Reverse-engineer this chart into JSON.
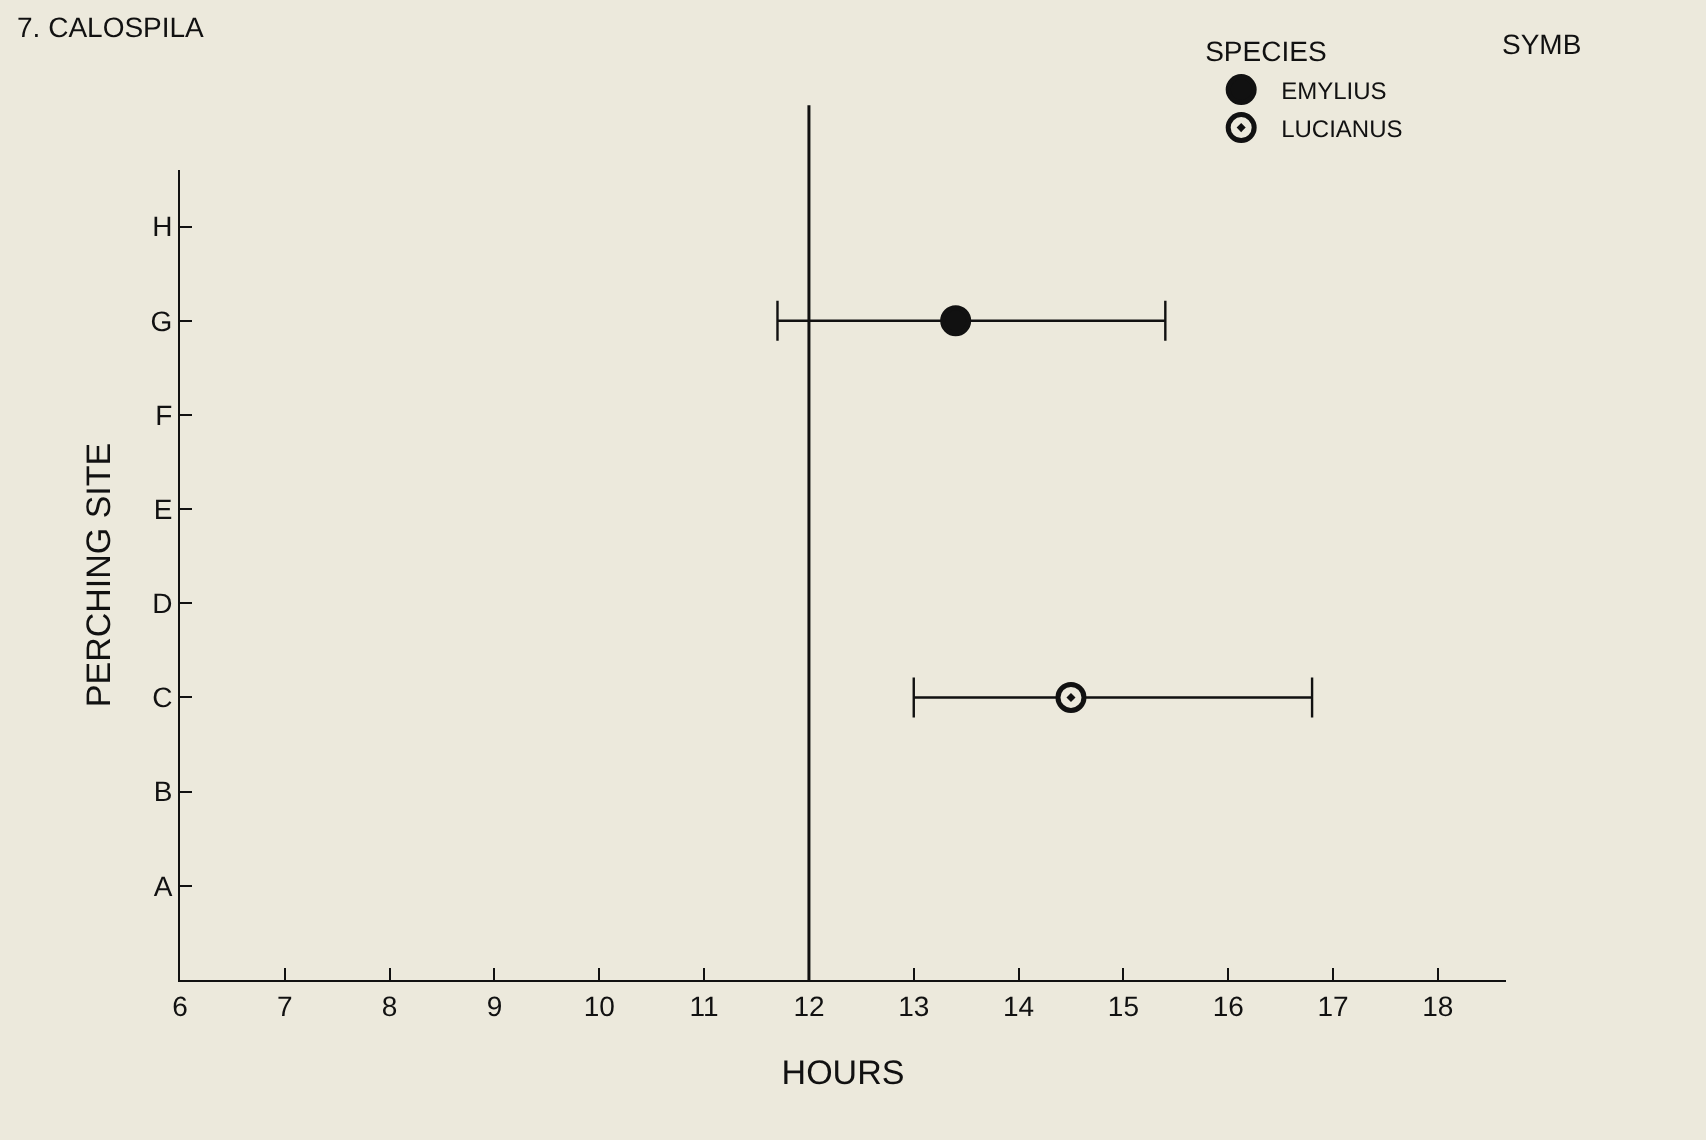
{
  "chart_data": {
    "type": "scatter",
    "orientation": "horizontal",
    "title": "7. CALOSPILA",
    "xlabel": "HOURS",
    "ylabel": "PERCHING SITE",
    "legend_title": "SPECIES",
    "annotations": [
      "SYMB"
    ],
    "categories": [
      "H",
      "G",
      "F",
      "E",
      "D",
      "C",
      "B",
      "A"
    ],
    "xlim": [
      6,
      18.65
    ],
    "xticks": [
      6,
      7,
      8,
      9,
      10,
      11,
      12,
      13,
      14,
      15,
      16,
      17,
      18
    ],
    "series": [
      {
        "name": "EMYLIUS",
        "color": "#111111",
        "values": [
          null,
          13.4,
          null,
          null,
          null,
          null,
          null,
          null
        ],
        "errors": [
          null,
          [
            11.7,
            15.4
          ],
          null,
          null,
          null,
          null,
          null,
          null
        ]
      },
      {
        "name": "LUCIANUS",
        "color": "#111111",
        "values": [
          null,
          null,
          null,
          null,
          null,
          14.5,
          null,
          null
        ],
        "errors": [
          null,
          null,
          null,
          null,
          null,
          [
            13.0,
            16.8
          ],
          null,
          null
        ]
      }
    ],
    "ref_lines": [
      {
        "axis": "x",
        "value": 12,
        "color": "#111111"
      }
    ],
    "marker": "circle",
    "legend": "top right",
    "grid": false
  }
}
